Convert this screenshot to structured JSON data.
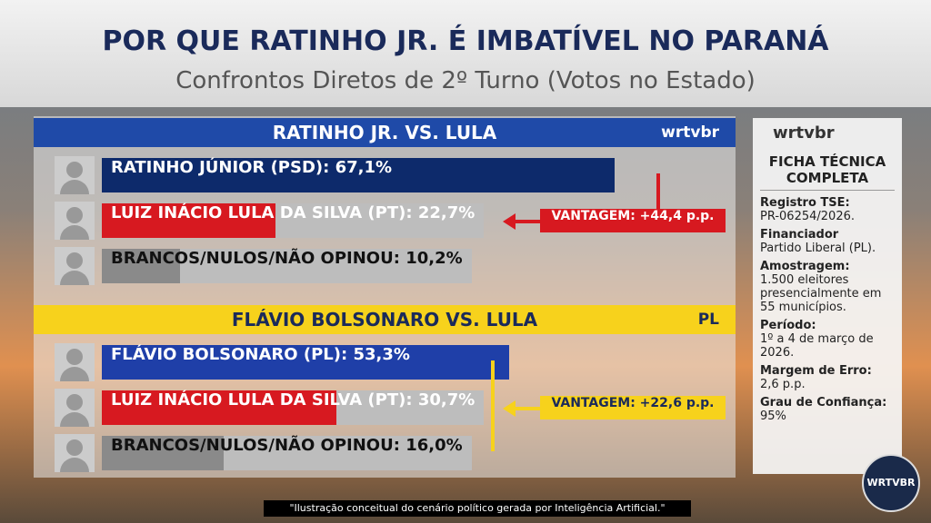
{
  "header": {
    "title": "POR QUE RATINHO JR. É IMBATÍVEL NO PARANÁ",
    "subtitle": "Confrontos Diretos de 2º Turno (Votos no Estado)"
  },
  "chart_data": [
    {
      "type": "bar",
      "title": "RATINHO JR. VS. LULA",
      "logo": "wrtvbr",
      "categories": [
        "RATINHO JÚNIOR (PSD):",
        "LUIZ INÁCIO LULA DA SILVA (PT):",
        "BRANCOS/NULOS/NÃO OPINOU:"
      ],
      "values": [
        67.1,
        22.7,
        10.2
      ],
      "value_labels": [
        "67,1%",
        "22,7%",
        "10,2%"
      ],
      "colors": [
        "#0d2a6b",
        "#d71920",
        "#8a8a8a"
      ],
      "annotation": "VANTAGEM: +44,4 p.p.",
      "annotation_color": "#d71920"
    },
    {
      "type": "bar",
      "title": "FLÁVIO BOLSONARO VS. LULA",
      "logo": "PL",
      "categories": [
        "FLÁVIO BOLSONARO (PL):",
        "LUIZ INÁCIO LULA DA SILVA (PT):",
        "BRANCOS/NULOS/NÃO OPINOU:"
      ],
      "values": [
        53.3,
        30.7,
        16.0
      ],
      "value_labels": [
        "53,3%",
        "30,7%",
        "16,0%"
      ],
      "colors": [
        "#1f3fa8",
        "#d71920",
        "#8a8a8a"
      ],
      "annotation": "VANTAGEM: +22,6 p.p.",
      "annotation_color": "#f7d21c"
    }
  ],
  "sidebar": {
    "logo": "wrtvbr",
    "title": "FICHA TÉCNICA COMPLETA",
    "items": [
      {
        "label": "Registro TSE:",
        "text": "PR-06254/2026."
      },
      {
        "label": "Financiador",
        "text": "Partido Liberal (PL)."
      },
      {
        "label": "Amostragem:",
        "text": "1.500 eleitores presencialmente em 55 municípios."
      },
      {
        "label": "Período:",
        "text": "1º a 4 de março de 2026."
      },
      {
        "label": "Margem de Erro:",
        "text": "2,6 p.p."
      },
      {
        "label": "Grau de Confiança:",
        "text": "95%"
      }
    ]
  },
  "badge": "WRTVBR",
  "footer": "\"Ilustração conceitual do cenário político gerada por Inteligência Artificial.\""
}
